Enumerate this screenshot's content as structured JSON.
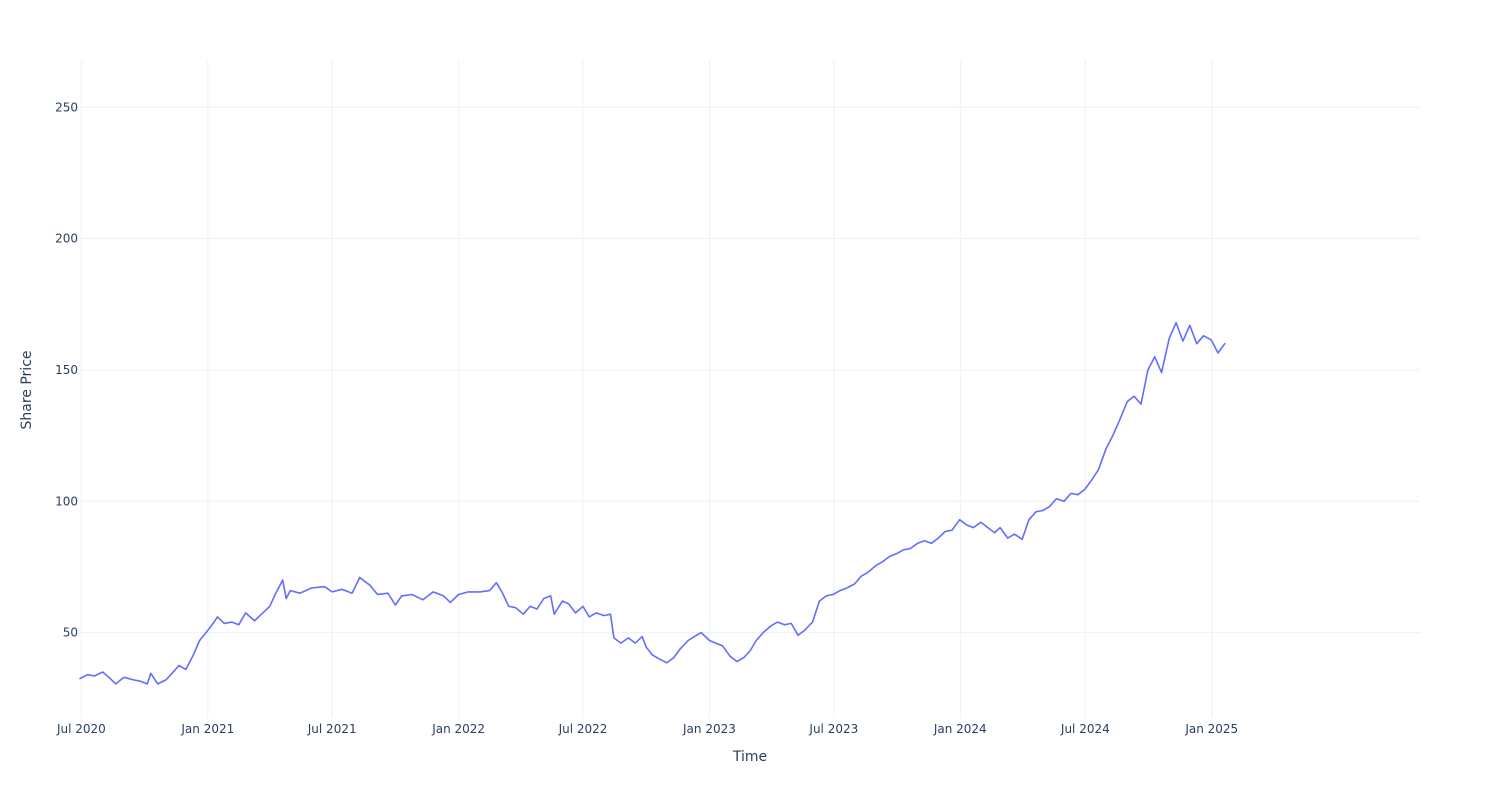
{
  "chart_data": {
    "type": "line",
    "title": "",
    "xlabel": "Time",
    "ylabel": "Share Price",
    "xlim": [
      "2020-06-29",
      "2025-10-31"
    ],
    "ylim": [
      17.5,
      268
    ],
    "grid": true,
    "legend": "none",
    "line_color": "#636efa",
    "grid_color": "#ebf0f8",
    "x_ticks": [
      {
        "date": "2020-07-01",
        "label": "Jul 2020"
      },
      {
        "date": "2021-01-01",
        "label": "Jan 2021"
      },
      {
        "date": "2021-07-01",
        "label": "Jul 2021"
      },
      {
        "date": "2022-01-01",
        "label": "Jan 2022"
      },
      {
        "date": "2022-07-01",
        "label": "Jul 2022"
      },
      {
        "date": "2023-01-01",
        "label": "Jan 2023"
      },
      {
        "date": "2023-07-01",
        "label": "Jul 2023"
      },
      {
        "date": "2024-01-01",
        "label": "Jan 2024"
      },
      {
        "date": "2024-07-01",
        "label": "Jul 2024"
      },
      {
        "date": "2025-01-01",
        "label": "Jan 2025"
      }
    ],
    "y_ticks": [
      {
        "value": 50,
        "label": "50"
      },
      {
        "value": 100,
        "label": "100"
      },
      {
        "value": 150,
        "label": "150"
      },
      {
        "value": 200,
        "label": "200"
      },
      {
        "value": 250,
        "label": "250"
      }
    ],
    "series": [
      {
        "points": [
          [
            "2020-06-29",
            32.5
          ],
          [
            "2020-07-10",
            34.0
          ],
          [
            "2020-07-20",
            33.5
          ],
          [
            "2020-08-01",
            35.0
          ],
          [
            "2020-08-10",
            33.0
          ],
          [
            "2020-08-20",
            30.5
          ],
          [
            "2020-09-01",
            33.0
          ],
          [
            "2020-09-15",
            32.0
          ],
          [
            "2020-09-25",
            31.5
          ],
          [
            "2020-10-05",
            30.5
          ],
          [
            "2020-10-10",
            34.5
          ],
          [
            "2020-10-20",
            30.5
          ],
          [
            "2020-11-01",
            32.0
          ],
          [
            "2020-11-10",
            34.5
          ],
          [
            "2020-11-20",
            37.5
          ],
          [
            "2020-11-30",
            36.0
          ],
          [
            "2020-12-10",
            41.0
          ],
          [
            "2020-12-20",
            47.0
          ],
          [
            "2020-12-31",
            50.5
          ],
          [
            "2021-01-10",
            54.0
          ],
          [
            "2021-01-15",
            56.0
          ],
          [
            "2021-01-25",
            53.5
          ],
          [
            "2021-02-05",
            54.0
          ],
          [
            "2021-02-15",
            53.0
          ],
          [
            "2021-02-25",
            57.5
          ],
          [
            "2021-03-10",
            54.5
          ],
          [
            "2021-03-20",
            57.0
          ],
          [
            "2021-04-01",
            60.0
          ],
          [
            "2021-04-10",
            65.0
          ],
          [
            "2021-04-20",
            70.0
          ],
          [
            "2021-04-25",
            63.0
          ],
          [
            "2021-05-01",
            66.0
          ],
          [
            "2021-05-15",
            65.0
          ],
          [
            "2021-06-01",
            67.0
          ],
          [
            "2021-06-20",
            67.5
          ],
          [
            "2021-07-01",
            65.5
          ],
          [
            "2021-07-15",
            66.5
          ],
          [
            "2021-07-30",
            65.0
          ],
          [
            "2021-08-10",
            71.0
          ],
          [
            "2021-08-25",
            68.0
          ],
          [
            "2021-09-05",
            64.5
          ],
          [
            "2021-09-20",
            65.0
          ],
          [
            "2021-10-01",
            60.5
          ],
          [
            "2021-10-10",
            64.0
          ],
          [
            "2021-10-25",
            64.5
          ],
          [
            "2021-11-10",
            62.5
          ],
          [
            "2021-11-25",
            65.5
          ],
          [
            "2021-12-10",
            64.0
          ],
          [
            "2021-12-20",
            61.5
          ],
          [
            "2022-01-01",
            64.5
          ],
          [
            "2022-01-15",
            65.5
          ],
          [
            "2022-02-01",
            65.5
          ],
          [
            "2022-02-15",
            66.0
          ],
          [
            "2022-02-25",
            69.0
          ],
          [
            "2022-03-05",
            65.5
          ],
          [
            "2022-03-15",
            60.0
          ],
          [
            "2022-03-25",
            59.5
          ],
          [
            "2022-04-05",
            57.0
          ],
          [
            "2022-04-15",
            60.0
          ],
          [
            "2022-04-25",
            59.0
          ],
          [
            "2022-05-05",
            63.0
          ],
          [
            "2022-05-15",
            64.0
          ],
          [
            "2022-05-20",
            57.0
          ],
          [
            "2022-06-01",
            62.0
          ],
          [
            "2022-06-10",
            61.0
          ],
          [
            "2022-06-20",
            57.5
          ],
          [
            "2022-07-01",
            60.0
          ],
          [
            "2022-07-10",
            56.0
          ],
          [
            "2022-07-20",
            57.5
          ],
          [
            "2022-08-01",
            56.5
          ],
          [
            "2022-08-10",
            57.0
          ],
          [
            "2022-08-15",
            48.0
          ],
          [
            "2022-08-25",
            46.0
          ],
          [
            "2022-09-05",
            48.0
          ],
          [
            "2022-09-15",
            46.0
          ],
          [
            "2022-09-25",
            48.5
          ],
          [
            "2022-10-01",
            44.5
          ],
          [
            "2022-10-10",
            41.5
          ],
          [
            "2022-10-20",
            40.0
          ],
          [
            "2022-10-31",
            38.5
          ],
          [
            "2022-11-10",
            40.5
          ],
          [
            "2022-11-20",
            44.0
          ],
          [
            "2022-12-01",
            47.0
          ],
          [
            "2022-12-10",
            48.5
          ],
          [
            "2022-12-20",
            50.0
          ],
          [
            "2023-01-01",
            47.0
          ],
          [
            "2023-01-10",
            46.0
          ],
          [
            "2023-01-20",
            45.0
          ],
          [
            "2023-01-31",
            41.0
          ],
          [
            "2023-02-10",
            39.0
          ],
          [
            "2023-02-20",
            40.5
          ],
          [
            "2023-03-01",
            43.0
          ],
          [
            "2023-03-10",
            47.0
          ],
          [
            "2023-03-20",
            50.0
          ],
          [
            "2023-03-31",
            52.5
          ],
          [
            "2023-04-10",
            54.0
          ],
          [
            "2023-04-20",
            53.0
          ],
          [
            "2023-04-30",
            53.5
          ],
          [
            "2023-05-10",
            49.0
          ],
          [
            "2023-05-20",
            51.0
          ],
          [
            "2023-05-31",
            54.0
          ],
          [
            "2023-06-10",
            62.0
          ],
          [
            "2023-06-20",
            64.0
          ],
          [
            "2023-06-30",
            64.5
          ],
          [
            "2023-07-10",
            66.0
          ],
          [
            "2023-07-20",
            67.0
          ],
          [
            "2023-07-31",
            68.5
          ],
          [
            "2023-08-10",
            71.5
          ],
          [
            "2023-08-20",
            73.0
          ],
          [
            "2023-08-31",
            75.5
          ],
          [
            "2023-09-10",
            77.0
          ],
          [
            "2023-09-20",
            79.0
          ],
          [
            "2023-09-30",
            80.0
          ],
          [
            "2023-10-10",
            81.5
          ],
          [
            "2023-10-20",
            82.0
          ],
          [
            "2023-10-31",
            84.0
          ],
          [
            "2023-11-10",
            85.0
          ],
          [
            "2023-11-20",
            84.0
          ],
          [
            "2023-11-30",
            86.0
          ],
          [
            "2023-12-10",
            88.5
          ],
          [
            "2023-12-20",
            89.0
          ],
          [
            "2023-12-31",
            93.0
          ],
          [
            "2024-01-10",
            91.0
          ],
          [
            "2024-01-20",
            90.0
          ],
          [
            "2024-01-31",
            92.0
          ],
          [
            "2024-02-10",
            90.0
          ],
          [
            "2024-02-20",
            88.0
          ],
          [
            "2024-02-28",
            90.0
          ],
          [
            "2024-03-10",
            86.0
          ],
          [
            "2024-03-20",
            87.5
          ],
          [
            "2024-03-31",
            85.5
          ],
          [
            "2024-04-10",
            93.0
          ],
          [
            "2024-04-20",
            96.0
          ],
          [
            "2024-04-30",
            96.5
          ],
          [
            "2024-05-10",
            98.0
          ],
          [
            "2024-05-20",
            101.0
          ],
          [
            "2024-05-31",
            100.0
          ],
          [
            "2024-06-10",
            103.0
          ],
          [
            "2024-06-20",
            102.5
          ],
          [
            "2024-06-30",
            104.5
          ],
          [
            "2024-07-10",
            108.0
          ],
          [
            "2024-07-20",
            112.0
          ],
          [
            "2024-07-31",
            120.0
          ],
          [
            "2024-08-10",
            125.0
          ],
          [
            "2024-08-20",
            131.0
          ],
          [
            "2024-08-31",
            138.0
          ],
          [
            "2024-09-10",
            140.0
          ],
          [
            "2024-09-20",
            137.0
          ],
          [
            "2024-09-30",
            150.0
          ],
          [
            "2024-10-10",
            155.0
          ],
          [
            "2024-10-20",
            149.0
          ],
          [
            "2024-10-31",
            162.0
          ],
          [
            "2024-11-10",
            168.0
          ],
          [
            "2024-11-20",
            161.0
          ],
          [
            "2024-11-30",
            167.0
          ],
          [
            "2024-12-10",
            160.0
          ],
          [
            "2024-12-20",
            163.0
          ],
          [
            "2024-12-31",
            161.5
          ],
          [
            "2025-01-10",
            156.5
          ],
          [
            "2025-01-20",
            160.0
          ]
        ]
      }
    ]
  }
}
